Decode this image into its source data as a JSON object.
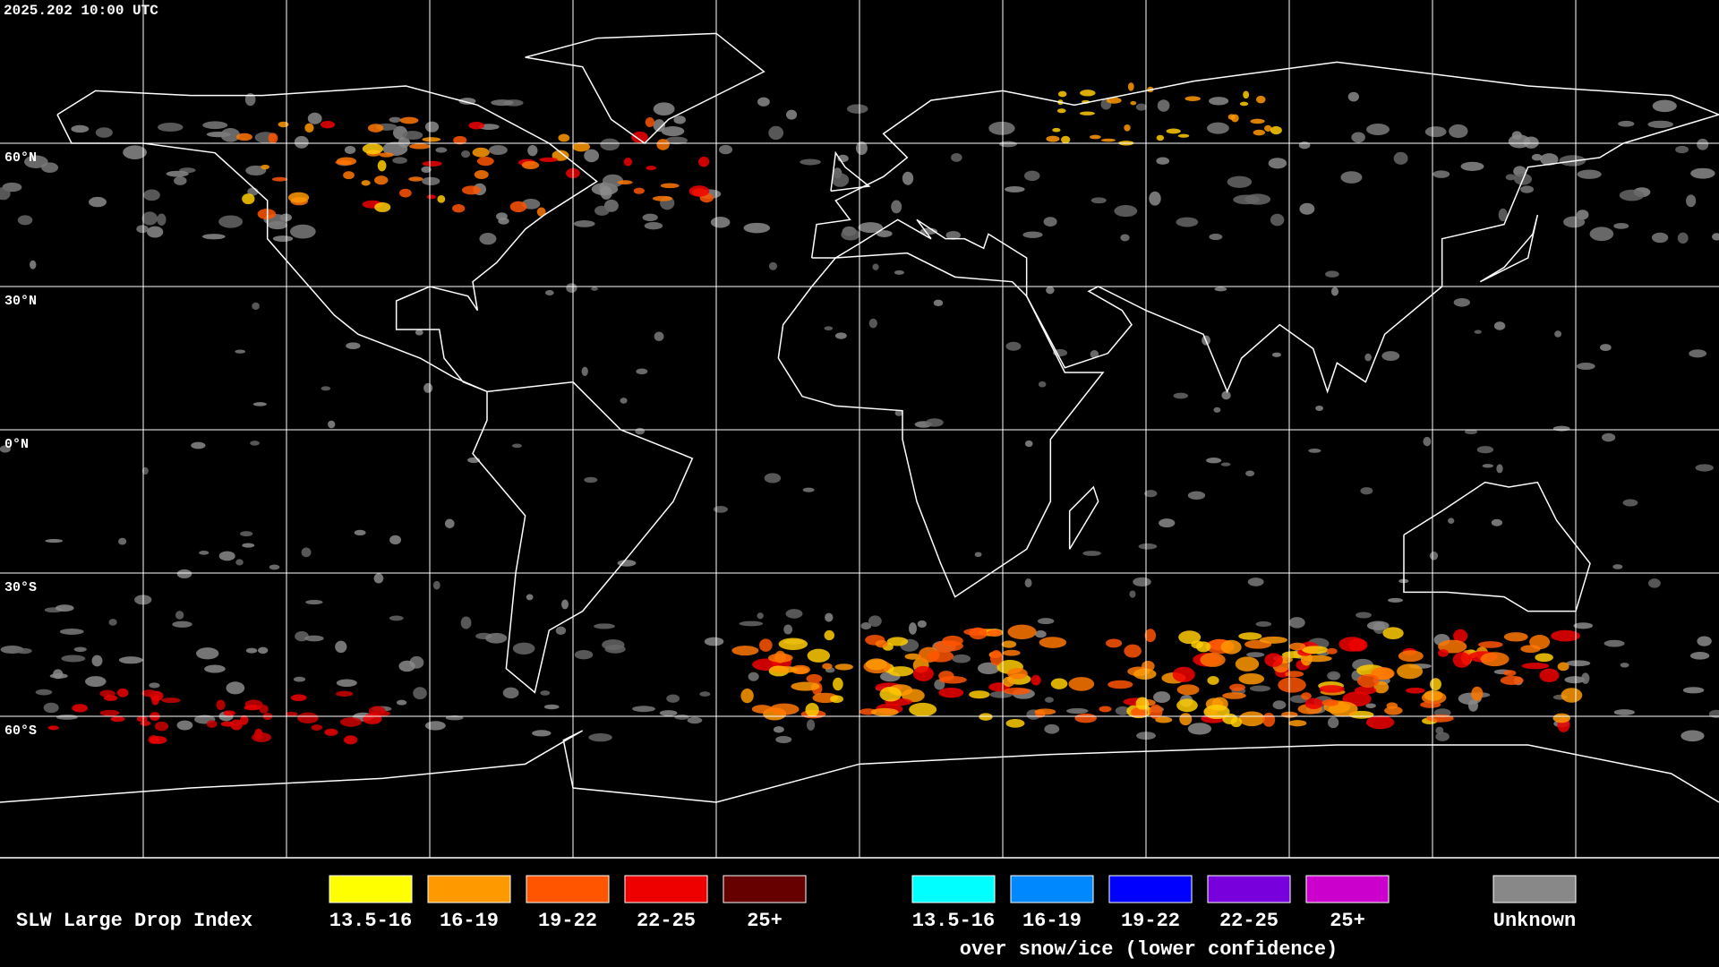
{
  "header": {
    "timestamp": "2025.202 10:00 UTC"
  },
  "map": {
    "lat_labels": [
      "60°N",
      "30°N",
      "0°N",
      "30°S",
      "60°S"
    ]
  },
  "legend": {
    "title": "SLW Large Drop Index",
    "groups": [
      {
        "items": [
          {
            "label": "13.5-16",
            "color": "#ffff00"
          },
          {
            "label": "16-19",
            "color": "#ff9900"
          },
          {
            "label": "19-22",
            "color": "#ff5500"
          },
          {
            "label": "22-25",
            "color": "#ee0000"
          },
          {
            "label": "25+",
            "color": "#660000"
          }
        ]
      },
      {
        "items": [
          {
            "label": "13.5-16",
            "color": "#00ffff"
          },
          {
            "label": "16-19",
            "color": "#0088ff"
          },
          {
            "label": "19-22",
            "color": "#0000ff"
          },
          {
            "label": "22-25",
            "color": "#7700dd"
          },
          {
            "label": "25+",
            "color": "#cc00cc"
          }
        ]
      }
    ],
    "snow_caption": "over snow/ice (lower confidence)",
    "unknown": {
      "label": "Unknown",
      "color": "#888888"
    }
  }
}
